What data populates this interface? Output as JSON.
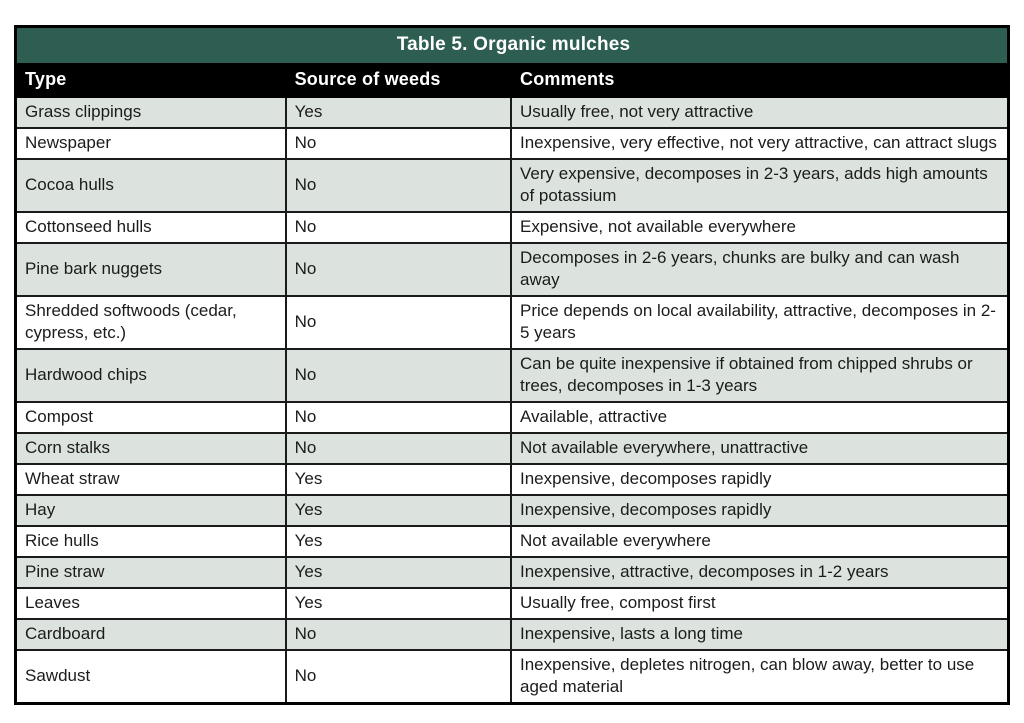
{
  "table": {
    "title": "Table 5. Organic mulches",
    "title_bg": "#2e5e51",
    "header_bg": "#000000",
    "shaded_row_bg": "#dce3de",
    "columns": [
      "Type",
      "Source of weeds",
      "Comments"
    ],
    "rows": [
      {
        "type": "Grass clippings",
        "source_of_weeds": "Yes",
        "comments": "Usually free, not very attractive"
      },
      {
        "type": "Newspaper",
        "source_of_weeds": "No",
        "comments": "Inexpensive, very effective, not very attractive, can attract slugs"
      },
      {
        "type": "Cocoa hulls",
        "source_of_weeds": "No",
        "comments": "Very expensive, decomposes in 2-3 years, adds high amounts of potassium"
      },
      {
        "type": "Cottonseed hulls",
        "source_of_weeds": "No",
        "comments": "Expensive, not available everywhere"
      },
      {
        "type": "Pine bark nuggets",
        "source_of_weeds": "No",
        "comments": "Decomposes in 2-6 years, chunks are bulky and can wash away"
      },
      {
        "type": "Shredded softwoods (cedar, cypress, etc.)",
        "source_of_weeds": "No",
        "comments": "Price depends on local availability, attractive, decomposes in 2-5 years"
      },
      {
        "type": "Hardwood chips",
        "source_of_weeds": "No",
        "comments": "Can be quite inexpensive if obtained from chipped shrubs or trees, decomposes in 1-3 years"
      },
      {
        "type": "Compost",
        "source_of_weeds": "No",
        "comments": "Available, attractive"
      },
      {
        "type": "Corn stalks",
        "source_of_weeds": "No",
        "comments": "Not available everywhere, unattractive"
      },
      {
        "type": "Wheat straw",
        "source_of_weeds": "Yes",
        "comments": "Inexpensive, decomposes rapidly"
      },
      {
        "type": "Hay",
        "source_of_weeds": "Yes",
        "comments": "Inexpensive, decomposes rapidly"
      },
      {
        "type": "Rice hulls",
        "source_of_weeds": "Yes",
        "comments": "Not available everywhere"
      },
      {
        "type": "Pine straw",
        "source_of_weeds": "Yes",
        "comments": "Inexpensive, attractive, decomposes in 1-2 years"
      },
      {
        "type": "Leaves",
        "source_of_weeds": "Yes",
        "comments": "Usually free, compost first"
      },
      {
        "type": "Cardboard",
        "source_of_weeds": "No",
        "comments": "Inexpensive, lasts a long time"
      },
      {
        "type": "Sawdust",
        "source_of_weeds": "No",
        "comments": "Inexpensive, depletes nitrogen, can blow away, better to use aged material"
      }
    ]
  }
}
